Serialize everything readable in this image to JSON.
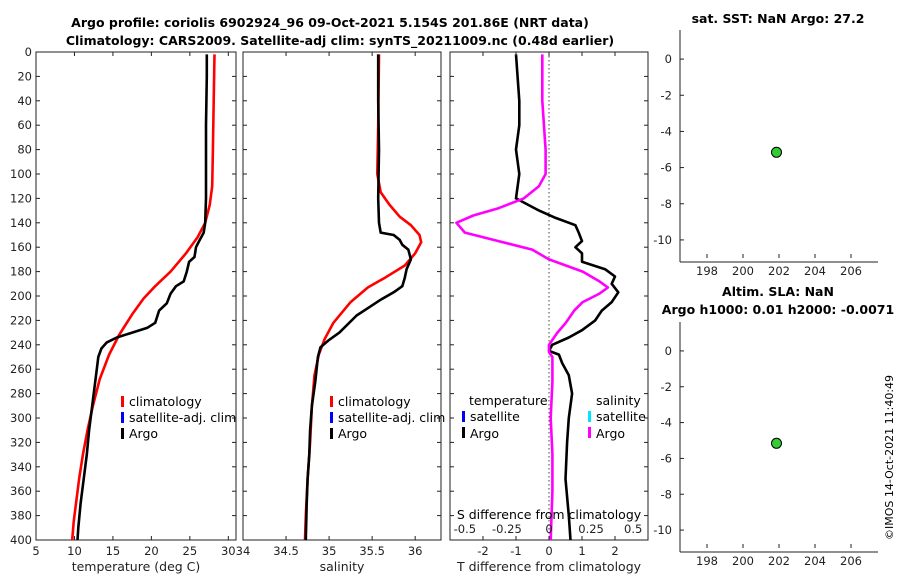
{
  "title_line1": "Argo profile: coriolis 6902924_96 09-Oct-2021 5.154S 201.86E (NRT data)",
  "title_line2": "Climatology: CARS2009. Satellite-adj clim: synTS_20211009.nc (0.48d earlier)",
  "timestamp": "©IMOS 14-Oct-2021 11:40:49",
  "chart_data": [
    {
      "id": "temperature",
      "type": "line",
      "xlabel": "temperature (deg C)",
      "xlim": [
        5,
        31
      ],
      "xticks": [
        5,
        10,
        15,
        20,
        25,
        30
      ],
      "ylim": [
        0,
        400
      ],
      "yticks": [
        0,
        20,
        40,
        60,
        80,
        100,
        120,
        140,
        160,
        180,
        200,
        220,
        240,
        260,
        280,
        300,
        320,
        340,
        360,
        380,
        400
      ],
      "legend": [
        "climatology",
        "satellite-adj. clim",
        "Argo"
      ],
      "series": [
        {
          "name": "climatology",
          "color": "#ff0000",
          "points": [
            [
              28.2,
              2
            ],
            [
              28.1,
              40
            ],
            [
              28.0,
              80
            ],
            [
              27.9,
              110
            ],
            [
              27.6,
              125
            ],
            [
              27.0,
              140
            ],
            [
              26.0,
              152
            ],
            [
              24.5,
              165
            ],
            [
              22.5,
              180
            ],
            [
              20.5,
              192
            ],
            [
              19.0,
              202
            ],
            [
              17.5,
              215
            ],
            [
              15.8,
              232
            ],
            [
              14.5,
              248
            ],
            [
              13.3,
              268
            ],
            [
              12.4,
              290
            ],
            [
              11.7,
              310
            ],
            [
              11.1,
              330
            ],
            [
              10.6,
              350
            ],
            [
              10.2,
              370
            ],
            [
              9.9,
              385
            ],
            [
              9.7,
              400
            ]
          ]
        },
        {
          "name": "Argo",
          "color": "#000000",
          "points": [
            [
              27.2,
              2
            ],
            [
              27.2,
              20
            ],
            [
              27.1,
              60
            ],
            [
              27.1,
              120
            ],
            [
              27.0,
              140
            ],
            [
              26.8,
              148
            ],
            [
              26.2,
              155
            ],
            [
              25.8,
              160
            ],
            [
              25.6,
              168
            ],
            [
              24.9,
              172
            ],
            [
              24.6,
              180
            ],
            [
              24.2,
              188
            ],
            [
              23.2,
              192
            ],
            [
              22.5,
              198
            ],
            [
              22.0,
              206
            ],
            [
              21.0,
              212
            ],
            [
              20.5,
              222
            ],
            [
              19.5,
              226
            ],
            [
              17.5,
              230
            ],
            [
              15.5,
              234
            ],
            [
              14.2,
              238
            ],
            [
              13.5,
              243
            ],
            [
              13.1,
              250
            ],
            [
              12.9,
              260
            ],
            [
              12.6,
              275
            ],
            [
              12.3,
              290
            ],
            [
              11.9,
              310
            ],
            [
              11.6,
              330
            ],
            [
              11.2,
              350
            ],
            [
              10.8,
              370
            ],
            [
              10.5,
              390
            ],
            [
              10.4,
              400
            ]
          ]
        }
      ]
    },
    {
      "id": "salinity",
      "type": "line",
      "xlabel": "salinity",
      "xlim": [
        34,
        36.3
      ],
      "xticks": [
        34,
        34.5,
        35,
        35.5,
        36
      ],
      "xtick_labels": [
        "34",
        "34.5",
        "35",
        "35.5",
        "36"
      ],
      "ylim": [
        0,
        400
      ],
      "legend": [
        "climatology",
        "satellite-adj. clim",
        "Argo"
      ],
      "series": [
        {
          "name": "climatology",
          "color": "#ff0000",
          "points": [
            [
              35.58,
              2
            ],
            [
              35.57,
              60
            ],
            [
              35.56,
              100
            ],
            [
              35.6,
              115
            ],
            [
              35.7,
              125
            ],
            [
              35.82,
              135
            ],
            [
              35.95,
              142
            ],
            [
              36.05,
              150
            ],
            [
              36.07,
              156
            ],
            [
              36.0,
              165
            ],
            [
              35.88,
              175
            ],
            [
              35.65,
              185
            ],
            [
              35.45,
              193
            ],
            [
              35.25,
              205
            ],
            [
              35.05,
              222
            ],
            [
              34.95,
              235
            ],
            [
              34.88,
              248
            ],
            [
              34.83,
              265
            ],
            [
              34.8,
              290
            ],
            [
              34.78,
              320
            ],
            [
              34.75,
              350
            ],
            [
              34.73,
              380
            ],
            [
              34.72,
              400
            ]
          ]
        },
        {
          "name": "Argo",
          "color": "#000000",
          "points": [
            [
              35.57,
              2
            ],
            [
              35.57,
              40
            ],
            [
              35.58,
              80
            ],
            [
              35.57,
              120
            ],
            [
              35.58,
              140
            ],
            [
              35.6,
              148
            ],
            [
              35.75,
              150
            ],
            [
              35.82,
              154
            ],
            [
              35.85,
              158
            ],
            [
              35.92,
              162
            ],
            [
              35.95,
              170
            ],
            [
              35.9,
              178
            ],
            [
              35.88,
              185
            ],
            [
              35.85,
              192
            ],
            [
              35.75,
              197
            ],
            [
              35.6,
              203
            ],
            [
              35.45,
              210
            ],
            [
              35.32,
              216
            ],
            [
              35.12,
              230
            ],
            [
              35.0,
              236
            ],
            [
              34.9,
              242
            ],
            [
              34.87,
              250
            ],
            [
              34.84,
              270
            ],
            [
              34.8,
              290
            ],
            [
              34.78,
              310
            ],
            [
              34.77,
              330
            ],
            [
              34.75,
              350
            ],
            [
              34.74,
              370
            ],
            [
              34.73,
              400
            ]
          ]
        }
      ]
    },
    {
      "id": "difference",
      "type": "line",
      "xlabel": "T difference from climatology",
      "xlabel_top": "S difference from climatology",
      "xlim": [
        -3,
        3
      ],
      "xticks": [
        -2,
        -1,
        0,
        1,
        2
      ],
      "xtick_labels": [
        "-2",
        "-1",
        "0",
        "1",
        "2"
      ],
      "top_ticks": [
        -0.5,
        -0.25,
        0,
        0.25,
        0.5
      ],
      "top_tick_labels": [
        "-0.5",
        "-0.25",
        "0",
        "0.25",
        "0.5"
      ],
      "ylim": [
        0,
        400
      ],
      "legend_left_title": "temperature",
      "legend_right_title": "salinity",
      "legend": [
        "satellite",
        "Argo",
        "satellite",
        "Argo"
      ],
      "series": [
        {
          "name": "temperature Argo",
          "color": "#000000",
          "points": [
            [
              -1.0,
              2
            ],
            [
              -0.9,
              40
            ],
            [
              -0.9,
              60
            ],
            [
              -1.0,
              80
            ],
            [
              -0.9,
              100
            ],
            [
              -1.0,
              120
            ],
            [
              -0.3,
              130
            ],
            [
              0.2,
              136
            ],
            [
              0.8,
              142
            ],
            [
              0.9,
              148
            ],
            [
              1.0,
              155
            ],
            [
              0.8,
              160
            ],
            [
              1.0,
              165
            ],
            [
              1.0,
              172
            ],
            [
              1.7,
              178
            ],
            [
              2.0,
              184
            ],
            [
              1.9,
              190
            ],
            [
              2.1,
              197
            ],
            [
              1.9,
              205
            ],
            [
              1.6,
              212
            ],
            [
              1.4,
              220
            ],
            [
              1.0,
              228
            ],
            [
              0.6,
              234
            ],
            [
              0.1,
              240
            ],
            [
              0.0,
              245
            ],
            [
              0.3,
              248
            ],
            [
              0.4,
              255
            ],
            [
              0.6,
              265
            ],
            [
              0.7,
              280
            ],
            [
              0.6,
              300
            ],
            [
              0.55,
              320
            ],
            [
              0.5,
              350
            ],
            [
              0.6,
              380
            ],
            [
              0.65,
              400
            ]
          ]
        },
        {
          "name": "salinity Argo",
          "color": "#ff00ff",
          "points": [
            [
              -0.04,
              2
            ],
            [
              -0.04,
              40
            ],
            [
              -0.02,
              80
            ],
            [
              -0.02,
              100
            ],
            [
              -0.06,
              110
            ],
            [
              -0.15,
              120
            ],
            [
              -0.3,
              128
            ],
            [
              -0.45,
              134
            ],
            [
              -0.55,
              140
            ],
            [
              -0.5,
              148
            ],
            [
              -0.3,
              155
            ],
            [
              -0.1,
              162
            ],
            [
              0.0,
              170
            ],
            [
              0.2,
              180
            ],
            [
              0.3,
              188
            ],
            [
              0.35,
              193
            ],
            [
              0.3,
              198
            ],
            [
              0.2,
              205
            ],
            [
              0.15,
              212
            ],
            [
              0.1,
              222
            ],
            [
              0.05,
              230
            ],
            [
              0.0,
              240
            ],
            [
              0.0,
              246
            ],
            [
              0.02,
              250
            ],
            [
              0.02,
              270
            ],
            [
              0.01,
              300
            ],
            [
              0.02,
              330
            ],
            [
              0.02,
              360
            ],
            [
              0.01,
              400
            ]
          ]
        }
      ]
    },
    {
      "id": "sst-map",
      "type": "scatter",
      "title": "sat. SST: NaN Argo: 27.2",
      "xlim": [
        196.5,
        207.5
      ],
      "xticks": [
        198,
        200,
        202,
        204,
        206
      ],
      "ylim": [
        -11,
        1
      ],
      "yticks": [
        0,
        -2,
        -4,
        -6,
        -8,
        -10
      ],
      "points": [
        [
          201.86,
          -5.154
        ]
      ]
    },
    {
      "id": "sla-map",
      "type": "scatter",
      "title": "Altim. SLA: NaN",
      "subtitle": "Argo h1000: 0.01 h2000: -0.0071",
      "xlim": [
        196.5,
        207.5
      ],
      "xticks": [
        198,
        200,
        202,
        204,
        206
      ],
      "ylim": [
        -11,
        1
      ],
      "yticks": [
        0,
        -2,
        -4,
        -6,
        -8,
        -10
      ],
      "points": [
        [
          201.86,
          -5.154
        ]
      ]
    }
  ],
  "colors": {
    "climatology": "#ff0000",
    "satellite_clim": "#0000ff",
    "argo": "#000000",
    "salinity_satellite": "#00e5ff",
    "salinity_argo": "#ff00ff",
    "point_fill": "#33cc33"
  }
}
